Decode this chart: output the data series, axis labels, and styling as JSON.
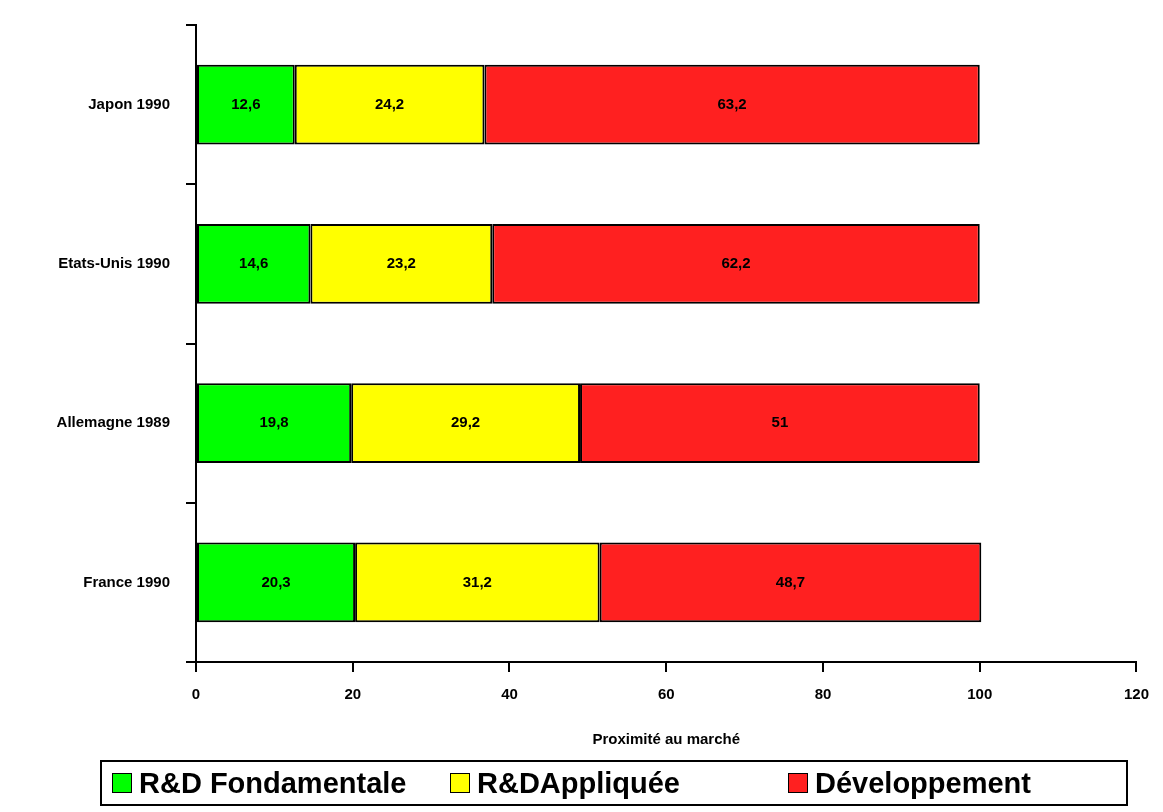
{
  "chart_data": {
    "type": "bar",
    "orientation": "horizontal",
    "stacked": true,
    "categories": [
      "Japon 1990",
      "Etats-Unis 1990",
      "Allemagne 1989",
      "France 1990"
    ],
    "series": [
      {
        "name": "R&D Fondamentale",
        "color": "#00ff00",
        "values": [
          12.6,
          14.6,
          19.8,
          20.3
        ],
        "value_labels": [
          "12,6",
          "14,6",
          "19,8",
          "20,3"
        ]
      },
      {
        "name": "R&DAppliquée",
        "color": "#ffff00",
        "values": [
          24.2,
          23.2,
          29.2,
          31.2
        ],
        "value_labels": [
          "24,2",
          "23,2",
          "29,2",
          "31,2"
        ]
      },
      {
        "name": "Développement",
        "color": "#ff2020",
        "values": [
          63.2,
          62.2,
          51,
          48.7
        ],
        "value_labels": [
          "63,2",
          "62,2",
          "51",
          "48,7"
        ]
      }
    ],
    "xlim": [
      0,
      120
    ],
    "xticks": [
      0,
      20,
      40,
      60,
      80,
      100,
      120
    ],
    "xlabel": "Proximité au marché",
    "legend": "bottom"
  }
}
